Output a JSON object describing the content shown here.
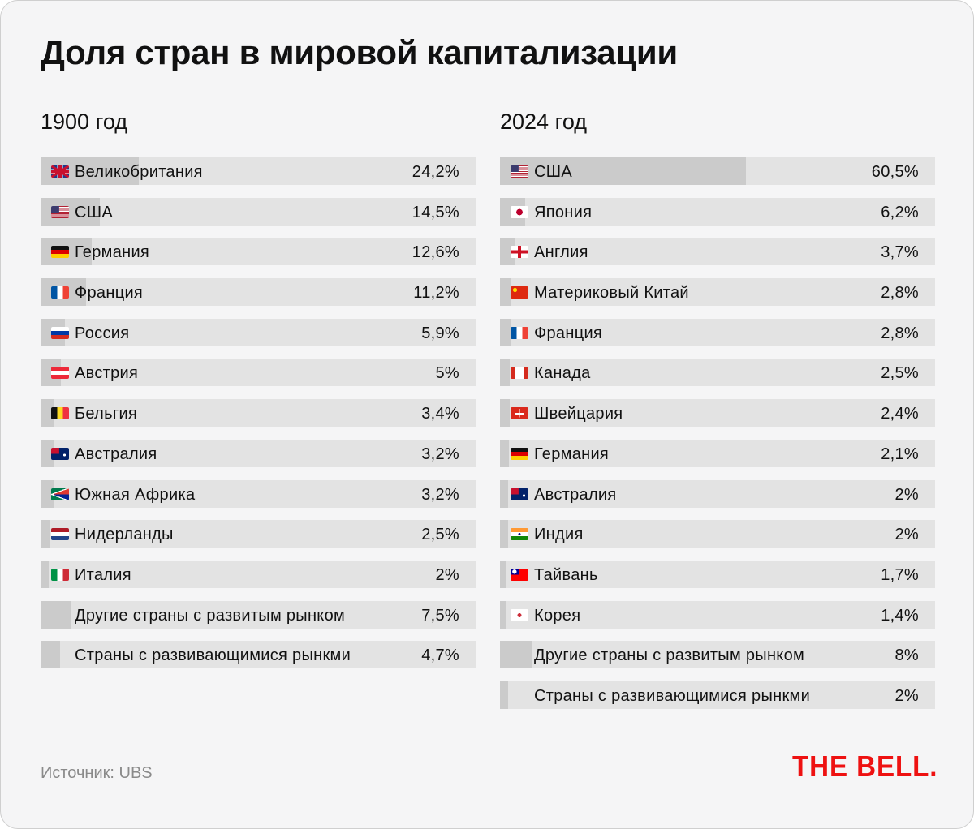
{
  "title": "Доля стран в мировой капитализации",
  "source": "Источник: UBS",
  "logo": "THE BELL.",
  "colors": {
    "track": "#e3e3e3",
    "fill": "#cbcbcb",
    "logo": "#ee1111"
  },
  "chart_data": [
    {
      "type": "bar",
      "title": "1900 год",
      "unit": "%",
      "categories": [
        "Великобритания",
        "США",
        "Германия",
        "Франция",
        "Россия",
        "Австрия",
        "Бельгия",
        "Австралия",
        "Южная Африка",
        "Нидерланды",
        "Италия",
        "Другие страны с развитым рынком",
        "Страны с развивающимися рынкми"
      ],
      "values": [
        24.2,
        14.5,
        12.6,
        11.2,
        5.9,
        5,
        3.4,
        3.2,
        3.2,
        2.5,
        2,
        7.5,
        4.7
      ],
      "labels": [
        "24,2%",
        "14,5%",
        "12,6%",
        "11,2%",
        "5,9%",
        "5%",
        "3,4%",
        "3,2%",
        "3,2%",
        "2,5%",
        "2%",
        "7,5%",
        "4,7%"
      ],
      "flags": [
        "gb",
        "us",
        "de",
        "fr",
        "ru",
        "at",
        "be",
        "au",
        "za",
        "nl",
        "it",
        "",
        ""
      ]
    },
    {
      "type": "bar",
      "title": "2024 год",
      "unit": "%",
      "categories": [
        "США",
        "Япония",
        "Англия",
        "Материковый Китай",
        "Франция",
        "Канада",
        "Швейцария",
        "Германия",
        "Австралия",
        "Индия",
        "Тайвань",
        "Корея",
        "Другие страны с развитым рынком",
        "Страны с развивающимися рынкми"
      ],
      "values": [
        60.5,
        6.2,
        3.7,
        2.8,
        2.8,
        2.5,
        2.4,
        2.1,
        2,
        2,
        1.7,
        1.4,
        8,
        2
      ],
      "labels": [
        "60,5%",
        "6,2%",
        "3,7%",
        "2,8%",
        "2,8%",
        "2,5%",
        "2,4%",
        "2,1%",
        "2%",
        "2%",
        "1,7%",
        "1,4%",
        "8%",
        "2%"
      ],
      "flags": [
        "us",
        "jp",
        "en",
        "cn",
        "fr",
        "ca",
        "ch",
        "de",
        "au",
        "in",
        "tw",
        "kr",
        "",
        ""
      ]
    }
  ]
}
